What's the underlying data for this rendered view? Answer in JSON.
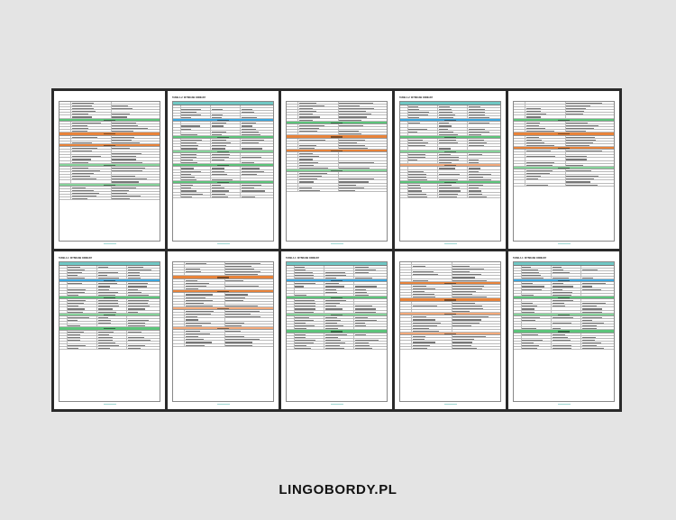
{
  "brand": {
    "text": "LINGOBORDY.PL"
  },
  "colors": {
    "frame": "#2a2a2a",
    "background": "#e4e4e4",
    "teal_header": "#6fc7c4",
    "green_band": "#5cc47a",
    "blue_band": "#3aa7e0",
    "orange_band": "#e8833a",
    "light_orange_band": "#f2a97a",
    "light_green_band": "#86d39a"
  },
  "pages": [
    {
      "title": "",
      "header": false,
      "layout": [
        [
          "r",
          6
        ],
        [
          "band",
          "green_band"
        ],
        [
          "r",
          4
        ],
        [
          "band",
          "orange_band"
        ],
        [
          "r",
          3
        ],
        [
          "band",
          "orange_band"
        ],
        [
          "r",
          6
        ],
        [
          "band",
          "light_green_band"
        ],
        [
          "r",
          6
        ],
        [
          "band",
          "light_green_band"
        ],
        [
          "r",
          5
        ]
      ]
    },
    {
      "title": "TABELA 2: WYBRANE ODMIANY",
      "header": true,
      "layout": [
        [
          "r",
          5
        ],
        [
          "band",
          "blue_band"
        ],
        [
          "r",
          5
        ],
        [
          "band",
          "green_band"
        ],
        [
          "r",
          4
        ],
        [
          "band",
          "light_green_band"
        ],
        [
          "r",
          4
        ],
        [
          "band",
          "green_band"
        ],
        [
          "r",
          5
        ],
        [
          "band",
          "green_band"
        ],
        [
          "r",
          5
        ]
      ]
    },
    {
      "title": "",
      "header": false,
      "layout": [
        [
          "r",
          7
        ],
        [
          "band",
          "green_band"
        ],
        [
          "r",
          4
        ],
        [
          "band",
          "orange_band"
        ],
        [
          "r",
          4
        ],
        [
          "band",
          "orange_band"
        ],
        [
          "r",
          6
        ],
        [
          "band",
          "light_green_band"
        ],
        [
          "r",
          7
        ]
      ]
    },
    {
      "title": "TABELA 2: WYBRANE ODMIANY",
      "header": true,
      "layout": [
        [
          "r",
          5
        ],
        [
          "band",
          "blue_band"
        ],
        [
          "r",
          5
        ],
        [
          "band",
          "green_band"
        ],
        [
          "r",
          4
        ],
        [
          "band",
          "light_green_band"
        ],
        [
          "r",
          4
        ],
        [
          "band",
          "light_orange_band"
        ],
        [
          "r",
          5
        ],
        [
          "band",
          "green_band"
        ],
        [
          "r",
          5
        ]
      ]
    },
    {
      "title": "",
      "header": false,
      "layout": [
        [
          "r",
          6
        ],
        [
          "band",
          "green_band"
        ],
        [
          "r",
          4
        ],
        [
          "band",
          "orange_band"
        ],
        [
          "r",
          4
        ],
        [
          "band",
          "orange_band"
        ],
        [
          "r",
          6
        ],
        [
          "band",
          "light_green_band"
        ],
        [
          "r",
          6
        ]
      ]
    },
    {
      "title": "TABELA 1: WYBRANE ODMIANY",
      "header": true,
      "layout": [
        [
          "r",
          5
        ],
        [
          "band",
          "blue_band"
        ],
        [
          "r",
          5
        ],
        [
          "band",
          "green_band"
        ],
        [
          "r",
          5
        ],
        [
          "band",
          "light_green_band"
        ],
        [
          "r",
          4
        ],
        [
          "band",
          "green_band"
        ],
        [
          "r",
          7
        ]
      ]
    },
    {
      "title": "",
      "header": false,
      "layout": [
        [
          "r",
          5
        ],
        [
          "band",
          "orange_band"
        ],
        [
          "r",
          4
        ],
        [
          "band",
          "orange_band"
        ],
        [
          "r",
          5
        ],
        [
          "band",
          "light_orange_band"
        ],
        [
          "r",
          6
        ],
        [
          "band",
          "light_orange_band"
        ],
        [
          "r",
          6
        ]
      ]
    },
    {
      "title": "TABELA 1: WYBRANE ODMIANY",
      "header": true,
      "layout": [
        [
          "r",
          5
        ],
        [
          "band",
          "blue_band"
        ],
        [
          "r",
          5
        ],
        [
          "band",
          "green_band"
        ],
        [
          "r",
          5
        ],
        [
          "band",
          "light_green_band"
        ],
        [
          "r",
          5
        ],
        [
          "band",
          "green_band"
        ],
        [
          "r",
          6
        ]
      ]
    },
    {
      "title": "",
      "header": false,
      "layout": [
        [
          "r",
          7
        ],
        [
          "band",
          "orange_band"
        ],
        [
          "r",
          5
        ],
        [
          "band",
          "orange_band"
        ],
        [
          "r",
          4
        ],
        [
          "band",
          "light_orange_band"
        ],
        [
          "r",
          6
        ],
        [
          "band",
          "light_orange_band"
        ],
        [
          "r",
          5
        ]
      ]
    },
    {
      "title": "TABELA 1: WYBRANE ODMIANY",
      "header": true,
      "layout": [
        [
          "r",
          5
        ],
        [
          "band",
          "blue_band"
        ],
        [
          "r",
          5
        ],
        [
          "band",
          "green_band"
        ],
        [
          "r",
          5
        ],
        [
          "band",
          "light_green_band"
        ],
        [
          "r",
          5
        ],
        [
          "band",
          "green_band"
        ],
        [
          "r",
          6
        ]
      ]
    }
  ]
}
